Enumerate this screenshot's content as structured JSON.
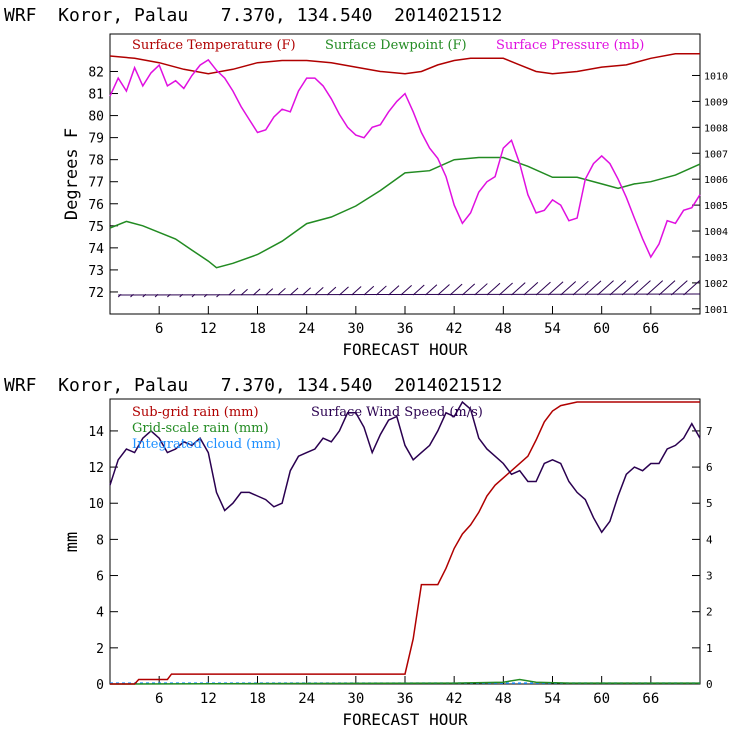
{
  "header_top": "WRF  Koror, Palau   7.370, 134.540  2014021512",
  "header_bottom": "WRF  Koror, Palau   7.370, 134.540  2014021512",
  "colors": {
    "temperature": "#b00000",
    "dewpoint": "#228b22",
    "pressure": "#e010e0",
    "wind": "#2a0050",
    "subgrid": "#b00000",
    "gridscale": "#228b22",
    "cloud": "#1e90ff"
  },
  "chart_data": [
    {
      "type": "line",
      "xlabel": "FORECAST HOUR",
      "ylabel": "Degrees F",
      "xlim": [
        0,
        72
      ],
      "xticks": [
        6,
        12,
        18,
        24,
        30,
        36,
        42,
        48,
        54,
        60,
        66
      ],
      "ylim_left": [
        71.0,
        83.7
      ],
      "yticks_left": [
        72,
        73,
        74,
        75,
        76,
        77,
        78,
        79,
        80,
        81,
        82
      ],
      "ylim_right": [
        1000.8,
        1011.6
      ],
      "yticks_right": [
        1001,
        1002,
        1003,
        1004,
        1005,
        1006,
        1007,
        1008,
        1009,
        1010
      ],
      "series": [
        {
          "name": "Surface Temperature (F)",
          "axis": "left",
          "points": [
            [
              0,
              82.7
            ],
            [
              3,
              82.6
            ],
            [
              6,
              82.4
            ],
            [
              9,
              82.1
            ],
            [
              12,
              81.9
            ],
            [
              15,
              82.1
            ],
            [
              18,
              82.4
            ],
            [
              21,
              82.5
            ],
            [
              24,
              82.5
            ],
            [
              27,
              82.4
            ],
            [
              30,
              82.2
            ],
            [
              33,
              82.0
            ],
            [
              36,
              81.9
            ],
            [
              38,
              82.0
            ],
            [
              40,
              82.3
            ],
            [
              42,
              82.5
            ],
            [
              44,
              82.6
            ],
            [
              46,
              82.6
            ],
            [
              48,
              82.6
            ],
            [
              50,
              82.3
            ],
            [
              52,
              82.0
            ],
            [
              54,
              81.9
            ],
            [
              57,
              82.0
            ],
            [
              60,
              82.2
            ],
            [
              63,
              82.3
            ],
            [
              66,
              82.6
            ],
            [
              69,
              82.8
            ],
            [
              72,
              82.8
            ]
          ]
        },
        {
          "name": "Surface Dewpoint (F)",
          "axis": "left",
          "points": [
            [
              0,
              74.9
            ],
            [
              2,
              75.2
            ],
            [
              4,
              75.0
            ],
            [
              6,
              74.7
            ],
            [
              8,
              74.4
            ],
            [
              10,
              73.9
            ],
            [
              12,
              73.4
            ],
            [
              13,
              73.1
            ],
            [
              15,
              73.3
            ],
            [
              18,
              73.7
            ],
            [
              21,
              74.3
            ],
            [
              24,
              75.1
            ],
            [
              27,
              75.4
            ],
            [
              30,
              75.9
            ],
            [
              33,
              76.6
            ],
            [
              36,
              77.4
            ],
            [
              39,
              77.5
            ],
            [
              42,
              78.0
            ],
            [
              45,
              78.1
            ],
            [
              48,
              78.1
            ],
            [
              51,
              77.7
            ],
            [
              54,
              77.2
            ],
            [
              57,
              77.2
            ],
            [
              60,
              76.9
            ],
            [
              62,
              76.7
            ],
            [
              64,
              76.9
            ],
            [
              66,
              77.0
            ],
            [
              69,
              77.3
            ],
            [
              72,
              77.8
            ]
          ]
        },
        {
          "name": "Surface Pressure (mb)",
          "axis": "right",
          "points": [
            [
              0,
              1009.2
            ],
            [
              1,
              1009.9
            ],
            [
              2,
              1009.4
            ],
            [
              3,
              1010.3
            ],
            [
              4,
              1009.6
            ],
            [
              5,
              1010.1
            ],
            [
              6,
              1010.4
            ],
            [
              7,
              1009.6
            ],
            [
              8,
              1009.8
            ],
            [
              9,
              1009.5
            ],
            [
              10,
              1010.0
            ],
            [
              11,
              1010.4
            ],
            [
              12,
              1010.6
            ],
            [
              13,
              1010.2
            ],
            [
              14,
              1009.9
            ],
            [
              15,
              1009.4
            ],
            [
              16,
              1008.8
            ],
            [
              17,
              1008.3
            ],
            [
              18,
              1007.8
            ],
            [
              19,
              1007.9
            ],
            [
              20,
              1008.4
            ],
            [
              21,
              1008.7
            ],
            [
              22,
              1008.6
            ],
            [
              23,
              1009.4
            ],
            [
              24,
              1009.9
            ],
            [
              25,
              1009.9
            ],
            [
              26,
              1009.6
            ],
            [
              27,
              1009.1
            ],
            [
              28,
              1008.5
            ],
            [
              29,
              1008.0
            ],
            [
              30,
              1007.7
            ],
            [
              31,
              1007.6
            ],
            [
              32,
              1008.0
            ],
            [
              33,
              1008.1
            ],
            [
              34,
              1008.6
            ],
            [
              35,
              1009.0
            ],
            [
              36,
              1009.3
            ],
            [
              37,
              1008.6
            ],
            [
              38,
              1007.8
            ],
            [
              39,
              1007.2
            ],
            [
              40,
              1006.8
            ],
            [
              41,
              1006.1
            ],
            [
              42,
              1005.0
            ],
            [
              43,
              1004.3
            ],
            [
              44,
              1004.7
            ],
            [
              45,
              1005.5
            ],
            [
              46,
              1005.9
            ],
            [
              47,
              1006.1
            ],
            [
              48,
              1007.2
            ],
            [
              49,
              1007.5
            ],
            [
              50,
              1006.6
            ],
            [
              51,
              1005.4
            ],
            [
              52,
              1004.7
            ],
            [
              53,
              1004.8
            ],
            [
              54,
              1005.2
            ],
            [
              55,
              1005.0
            ],
            [
              56,
              1004.4
            ],
            [
              57,
              1004.5
            ],
            [
              58,
              1006.0
            ],
            [
              59,
              1006.6
            ],
            [
              60,
              1006.9
            ],
            [
              61,
              1006.6
            ],
            [
              62,
              1006.0
            ],
            [
              63,
              1005.3
            ],
            [
              64,
              1004.5
            ],
            [
              65,
              1003.7
            ],
            [
              66,
              1003.0
            ],
            [
              67,
              1003.5
            ],
            [
              68,
              1004.4
            ],
            [
              69,
              1004.3
            ],
            [
              70,
              1004.8
            ],
            [
              71,
              1004.9
            ],
            [
              72,
              1005.4
            ]
          ]
        }
      ]
    },
    {
      "type": "line",
      "xlabel": "FORECAST HOUR",
      "ylabel": "mm",
      "xlim": [
        0,
        72
      ],
      "xticks": [
        6,
        12,
        18,
        24,
        30,
        36,
        42,
        48,
        54,
        60,
        66
      ],
      "ylim_left": [
        0,
        15.6
      ],
      "yticks_left": [
        0,
        2,
        4,
        6,
        8,
        10,
        12,
        14
      ],
      "ylim_right": [
        0,
        7.8
      ],
      "yticks_right": [
        0,
        1,
        2,
        3,
        4,
        5,
        6,
        7
      ],
      "series": [
        {
          "name": "Sub-grid rain (mm)",
          "axis": "left",
          "points": [
            [
              0,
              0
            ],
            [
              3,
              0
            ],
            [
              3.5,
              0.25
            ],
            [
              7,
              0.25
            ],
            [
              7.5,
              0.55
            ],
            [
              36,
              0.55
            ],
            [
              37,
              2.5
            ],
            [
              38,
              5.5
            ],
            [
              40,
              5.5
            ],
            [
              41,
              6.4
            ],
            [
              42,
              7.5
            ],
            [
              43,
              8.3
            ],
            [
              44,
              8.8
            ],
            [
              45,
              9.5
            ],
            [
              46,
              10.4
            ],
            [
              47,
              11.0
            ],
            [
              49,
              11.8
            ],
            [
              51,
              12.6
            ],
            [
              52,
              13.5
            ],
            [
              53,
              14.5
            ],
            [
              54,
              15.1
            ],
            [
              55,
              15.4
            ],
            [
              57,
              15.6
            ],
            [
              72,
              15.6
            ]
          ]
        },
        {
          "name": "Grid-scale rain (mm)",
          "axis": "left",
          "points": [
            [
              0,
              0
            ],
            [
              42,
              0.05
            ],
            [
              48,
              0.1
            ],
            [
              50,
              0.25
            ],
            [
              52,
              0.1
            ],
            [
              56,
              0.05
            ],
            [
              72,
              0.05
            ]
          ]
        },
        {
          "name": "Integrated cloud (mm)",
          "axis": "left",
          "points": [
            [
              0,
              0.05
            ],
            [
              72,
              0.05
            ]
          ]
        },
        {
          "name": "Surface Wind Speed (m/s)",
          "axis": "right",
          "points": [
            [
              0,
              5.5
            ],
            [
              1,
              6.2
            ],
            [
              2,
              6.5
            ],
            [
              3,
              6.4
            ],
            [
              4,
              6.8
            ],
            [
              5,
              7.0
            ],
            [
              6,
              6.8
            ],
            [
              7,
              6.4
            ],
            [
              8,
              6.5
            ],
            [
              9,
              6.7
            ],
            [
              10,
              6.6
            ],
            [
              11,
              6.8
            ],
            [
              12,
              6.4
            ],
            [
              13,
              5.3
            ],
            [
              14,
              4.8
            ],
            [
              15,
              5.0
            ],
            [
              16,
              5.3
            ],
            [
              17,
              5.3
            ],
            [
              18,
              5.2
            ],
            [
              19,
              5.1
            ],
            [
              20,
              4.9
            ],
            [
              21,
              5.0
            ],
            [
              22,
              5.9
            ],
            [
              23,
              6.3
            ],
            [
              24,
              6.4
            ],
            [
              25,
              6.5
            ],
            [
              26,
              6.8
            ],
            [
              27,
              6.7
            ],
            [
              28,
              7.0
            ],
            [
              29,
              7.5
            ],
            [
              30,
              7.5
            ],
            [
              31,
              7.1
            ],
            [
              32,
              6.4
            ],
            [
              33,
              6.9
            ],
            [
              34,
              7.3
            ],
            [
              35,
              7.4
            ],
            [
              36,
              6.6
            ],
            [
              37,
              6.2
            ],
            [
              38,
              6.4
            ],
            [
              39,
              6.6
            ],
            [
              40,
              7.0
            ],
            [
              41,
              7.5
            ],
            [
              42,
              7.4
            ],
            [
              43,
              7.8
            ],
            [
              44,
              7.6
            ],
            [
              45,
              6.8
            ],
            [
              46,
              6.5
            ],
            [
              47,
              6.3
            ],
            [
              48,
              6.1
            ],
            [
              49,
              5.8
            ],
            [
              50,
              5.9
            ],
            [
              51,
              5.6
            ],
            [
              52,
              5.6
            ],
            [
              53,
              6.1
            ],
            [
              54,
              6.2
            ],
            [
              55,
              6.1
            ],
            [
              56,
              5.6
            ],
            [
              57,
              5.3
            ],
            [
              58,
              5.1
            ],
            [
              59,
              4.6
            ],
            [
              60,
              4.2
            ],
            [
              61,
              4.5
            ],
            [
              62,
              5.2
            ],
            [
              63,
              5.8
            ],
            [
              64,
              6.0
            ],
            [
              65,
              5.9
            ],
            [
              66,
              6.1
            ],
            [
              67,
              6.1
            ],
            [
              68,
              6.5
            ],
            [
              69,
              6.6
            ],
            [
              70,
              6.8
            ],
            [
              71,
              7.2
            ],
            [
              72,
              6.8
            ]
          ]
        }
      ],
      "wind_speed_label": "Surface Wind Speed (m/s)"
    }
  ]
}
